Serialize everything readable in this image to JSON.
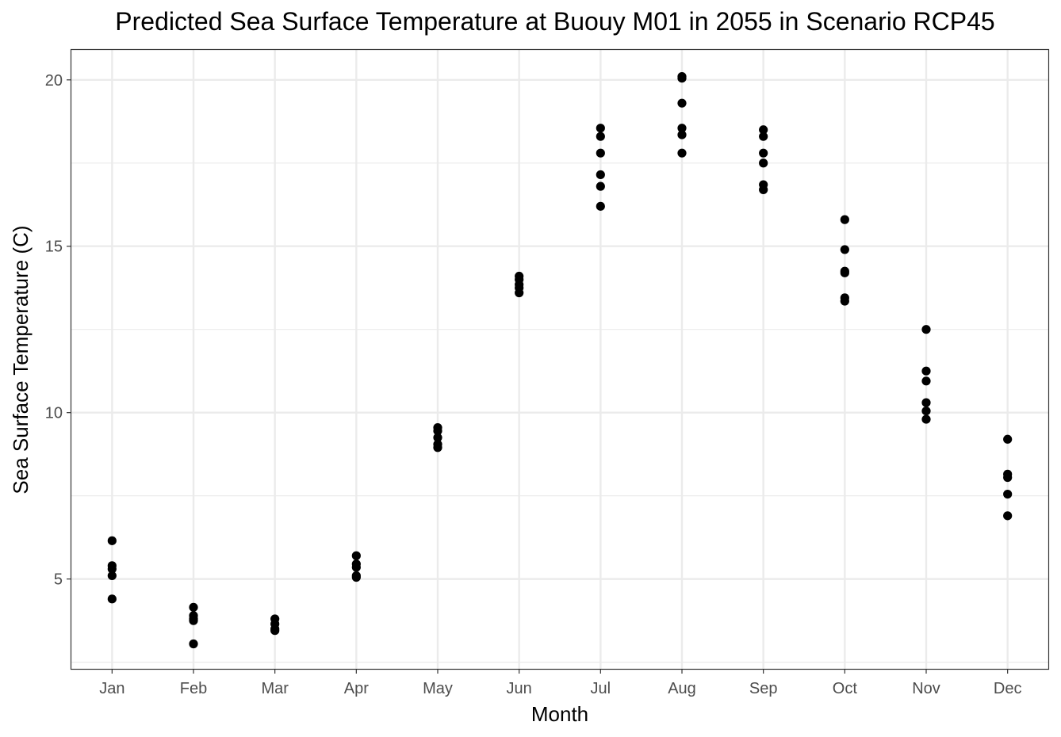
{
  "chart_data": {
    "type": "scatter",
    "title": "Predicted Sea Surface Temperature at Buouy M01 in 2055 in Scenario RCP45",
    "xlabel": "Month",
    "ylabel": "Sea Surface Temperature (C)",
    "categories": [
      "Jan",
      "Feb",
      "Mar",
      "Apr",
      "May",
      "Jun",
      "Jul",
      "Aug",
      "Sep",
      "Oct",
      "Nov",
      "Dec"
    ],
    "ylim": [
      2.3,
      20.9
    ],
    "y_ticks": [
      5,
      10,
      15,
      20
    ],
    "y_tick_labels": [
      "5",
      "10",
      "15",
      "20"
    ],
    "grid": true,
    "legend": "none",
    "colors": {
      "point": "#000000",
      "grid": "#ebebeb",
      "panel_border": "#333333",
      "background": "#ffffff"
    },
    "points": [
      {
        "x": "Jan",
        "y": 6.15
      },
      {
        "x": "Jan",
        "y": 5.4
      },
      {
        "x": "Jan",
        "y": 5.3
      },
      {
        "x": "Jan",
        "y": 5.1
      },
      {
        "x": "Jan",
        "y": 4.4
      },
      {
        "x": "Feb",
        "y": 4.15
      },
      {
        "x": "Feb",
        "y": 3.9
      },
      {
        "x": "Feb",
        "y": 3.8
      },
      {
        "x": "Feb",
        "y": 3.75
      },
      {
        "x": "Feb",
        "y": 3.05
      },
      {
        "x": "Mar",
        "y": 3.8
      },
      {
        "x": "Mar",
        "y": 3.65
      },
      {
        "x": "Mar",
        "y": 3.5
      },
      {
        "x": "Mar",
        "y": 3.45
      },
      {
        "x": "Apr",
        "y": 5.7
      },
      {
        "x": "Apr",
        "y": 5.45
      },
      {
        "x": "Apr",
        "y": 5.35
      },
      {
        "x": "Apr",
        "y": 5.1
      },
      {
        "x": "Apr",
        "y": 5.05
      },
      {
        "x": "May",
        "y": 9.55
      },
      {
        "x": "May",
        "y": 9.45
      },
      {
        "x": "May",
        "y": 9.25
      },
      {
        "x": "May",
        "y": 9.05
      },
      {
        "x": "May",
        "y": 8.95
      },
      {
        "x": "Jun",
        "y": 14.1
      },
      {
        "x": "Jun",
        "y": 14.0
      },
      {
        "x": "Jun",
        "y": 13.85
      },
      {
        "x": "Jun",
        "y": 13.75
      },
      {
        "x": "Jun",
        "y": 13.6
      },
      {
        "x": "Jul",
        "y": 18.55
      },
      {
        "x": "Jul",
        "y": 18.3
      },
      {
        "x": "Jul",
        "y": 17.8
      },
      {
        "x": "Jul",
        "y": 17.15
      },
      {
        "x": "Jul",
        "y": 16.8
      },
      {
        "x": "Jul",
        "y": 16.2
      },
      {
        "x": "Aug",
        "y": 20.1
      },
      {
        "x": "Aug",
        "y": 20.05
      },
      {
        "x": "Aug",
        "y": 19.3
      },
      {
        "x": "Aug",
        "y": 18.55
      },
      {
        "x": "Aug",
        "y": 18.35
      },
      {
        "x": "Aug",
        "y": 17.8
      },
      {
        "x": "Sep",
        "y": 18.5
      },
      {
        "x": "Sep",
        "y": 18.3
      },
      {
        "x": "Sep",
        "y": 17.8
      },
      {
        "x": "Sep",
        "y": 17.5
      },
      {
        "x": "Sep",
        "y": 16.85
      },
      {
        "x": "Sep",
        "y": 16.7
      },
      {
        "x": "Oct",
        "y": 15.8
      },
      {
        "x": "Oct",
        "y": 14.9
      },
      {
        "x": "Oct",
        "y": 14.25
      },
      {
        "x": "Oct",
        "y": 14.2
      },
      {
        "x": "Oct",
        "y": 13.45
      },
      {
        "x": "Oct",
        "y": 13.35
      },
      {
        "x": "Nov",
        "y": 12.5
      },
      {
        "x": "Nov",
        "y": 11.25
      },
      {
        "x": "Nov",
        "y": 10.95
      },
      {
        "x": "Nov",
        "y": 10.3
      },
      {
        "x": "Nov",
        "y": 10.05
      },
      {
        "x": "Nov",
        "y": 9.8
      },
      {
        "x": "Dec",
        "y": 9.2
      },
      {
        "x": "Dec",
        "y": 8.15
      },
      {
        "x": "Dec",
        "y": 8.05
      },
      {
        "x": "Dec",
        "y": 7.55
      },
      {
        "x": "Dec",
        "y": 6.9
      }
    ]
  }
}
